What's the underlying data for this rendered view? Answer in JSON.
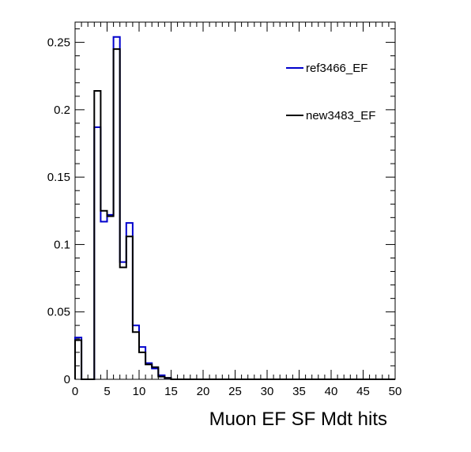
{
  "chart_data": {
    "type": "line",
    "drawstyle": "histogram-step",
    "title": "",
    "xlabel": "Muon EF SF Mdt hits",
    "ylabel": "",
    "xlim": [
      0,
      50
    ],
    "ylim": [
      0,
      0.265
    ],
    "bin_width": 1,
    "xticks": [
      0,
      5,
      10,
      15,
      20,
      25,
      30,
      35,
      40,
      45,
      50
    ],
    "xtick_labels": [
      "0",
      "5",
      "10",
      "15",
      "20",
      "25",
      "30",
      "35",
      "40",
      "45",
      "50"
    ],
    "yticks": [
      0,
      0.05,
      0.1,
      0.15,
      0.2,
      0.25
    ],
    "ytick_labels": [
      "0",
      "0.05",
      "0.1",
      "0.15",
      "0.2",
      "0.25"
    ],
    "grid": false,
    "legend_position": "top-right",
    "series": [
      {
        "name": "ref3466_EF",
        "color": "#0000cc",
        "values": [
          0.031,
          0,
          0,
          0.187,
          0.117,
          0.122,
          0.254,
          0.087,
          0.116,
          0.04,
          0.024,
          0.012,
          0.008,
          0.003,
          0.001,
          0,
          0,
          0,
          0,
          0,
          0,
          0,
          0,
          0,
          0,
          0,
          0,
          0,
          0,
          0,
          0,
          0,
          0,
          0,
          0,
          0,
          0,
          0,
          0,
          0,
          0,
          0,
          0,
          0,
          0,
          0,
          0,
          0,
          0,
          0
        ]
      },
      {
        "name": "new3483_EF",
        "color": "#000000",
        "values": [
          0.029,
          0,
          0,
          0.214,
          0.125,
          0.121,
          0.245,
          0.083,
          0.106,
          0.035,
          0.02,
          0.011,
          0.009,
          0.002,
          0.001,
          0,
          0,
          0,
          0,
          0,
          0,
          0,
          0,
          0,
          0,
          0,
          0,
          0,
          0,
          0,
          0,
          0,
          0,
          0,
          0,
          0,
          0,
          0,
          0,
          0,
          0,
          0,
          0,
          0,
          0,
          0,
          0,
          0,
          0,
          0
        ]
      }
    ]
  }
}
